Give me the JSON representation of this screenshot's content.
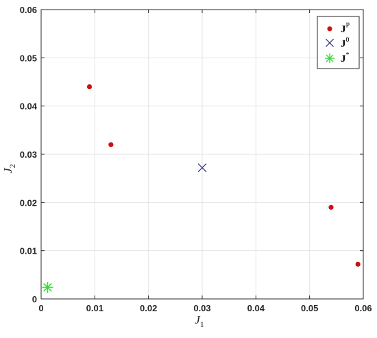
{
  "chart_data": {
    "type": "scatter",
    "title": "",
    "xlabel": {
      "base": "J",
      "sub": "1"
    },
    "ylabel": {
      "base": "J",
      "sub": "2"
    },
    "xlim": [
      0,
      0.06
    ],
    "ylim": [
      0,
      0.06
    ],
    "xticks": [
      0,
      0.01,
      0.02,
      0.03,
      0.04,
      0.05,
      0.06
    ],
    "yticks": [
      0,
      0.01,
      0.02,
      0.03,
      0.04,
      0.05,
      0.06
    ],
    "xtick_labels": [
      "0",
      "0.01",
      "0.02",
      "0.03",
      "0.04",
      "0.05",
      "0.06"
    ],
    "ytick_labels": [
      "0",
      "0.01",
      "0.02",
      "0.03",
      "0.04",
      "0.05",
      "0.06"
    ],
    "grid": true,
    "legend_position": "top-right",
    "series": [
      {
        "name": "J",
        "name_sup": "P",
        "marker": "dot",
        "color": "#cc1111",
        "points": [
          {
            "x": 0.009,
            "y": 0.044
          },
          {
            "x": 0.013,
            "y": 0.032
          },
          {
            "x": 0.054,
            "y": 0.019
          },
          {
            "x": 0.059,
            "y": 0.0072
          }
        ]
      },
      {
        "name": "J",
        "name_sup": "0",
        "marker": "x",
        "color": "#2a2a8a",
        "points": [
          {
            "x": 0.03,
            "y": 0.0272
          }
        ]
      },
      {
        "name": "J",
        "name_sup": "*",
        "marker": "asterisk",
        "color": "#33dd33",
        "points": [
          {
            "x": 0.0012,
            "y": 0.0024
          }
        ]
      }
    ]
  }
}
